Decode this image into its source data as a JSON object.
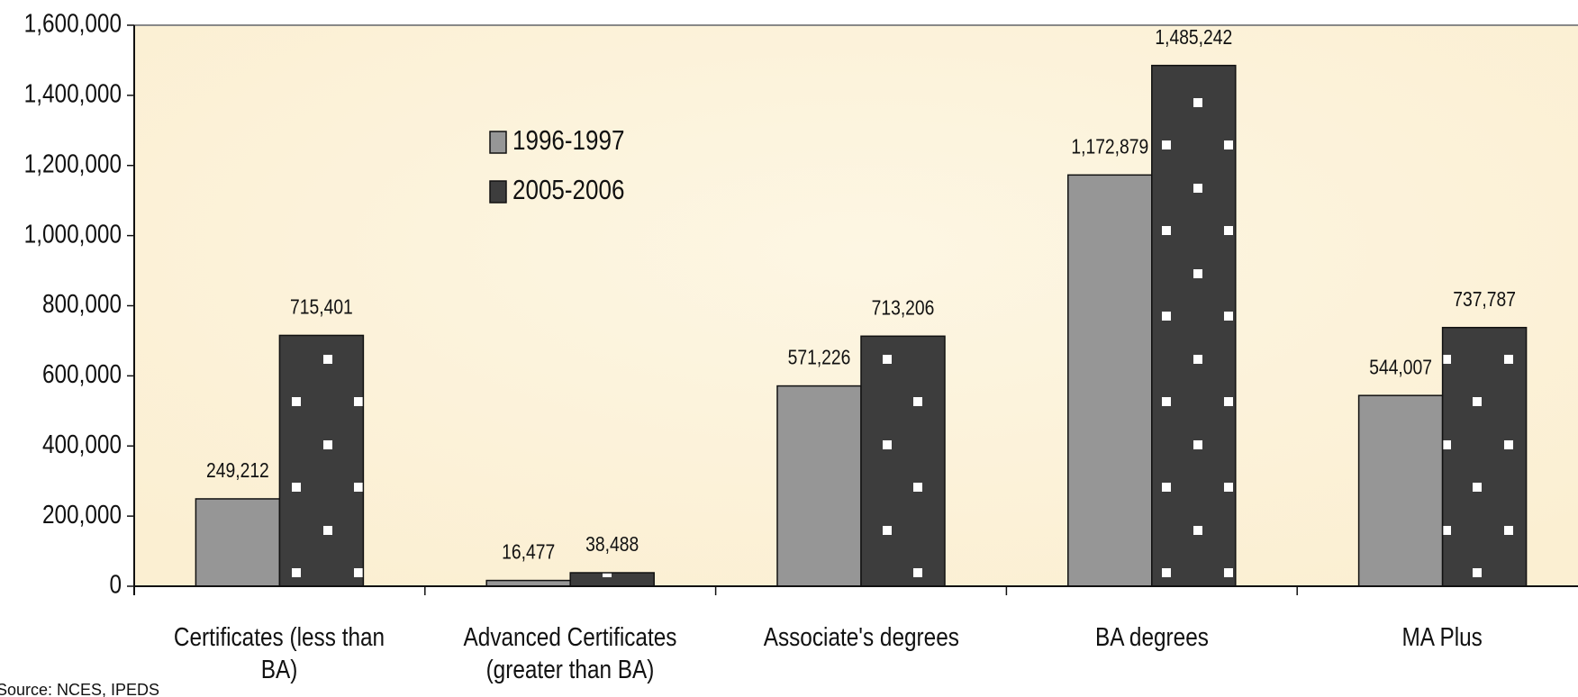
{
  "chart_data": {
    "type": "bar",
    "categories": [
      "Certificates (less than BA)",
      "Advanced Certificates (greater than BA)",
      "Associate's degrees",
      "BA degrees",
      "MA Plus"
    ],
    "series": [
      {
        "name": "1996-1997",
        "color": "#969696",
        "values": [
          249212,
          16477,
          571226,
          1172879,
          544007
        ],
        "value_labels": [
          "249,212",
          "16,477",
          "571,226",
          "1,172,879",
          "544,007"
        ]
      },
      {
        "name": "2005-2006",
        "color": "#3d3d3d",
        "values": [
          715401,
          38488,
          713206,
          1485242,
          737787
        ],
        "value_labels": [
          "715,401",
          "38,488",
          "713,206",
          "1,485,242",
          "737,787"
        ]
      }
    ],
    "ylim": [
      0,
      1600000
    ],
    "yticks": [
      0,
      {
        "value": 200000,
        "label": "200,000"
      },
      {
        "value": 400000,
        "label": "400,000"
      },
      {
        "value": 600000,
        "label": "600,000"
      },
      {
        "value": 800000,
        "label": "800,000"
      },
      {
        "value": 1000000,
        "label": "1,000,000"
      },
      {
        "value": 1200000,
        "label": "1,200,000"
      },
      {
        "value": 1400000,
        "label": "1,400,000"
      },
      {
        "value": 1600000,
        "label": "1,600,000"
      }
    ],
    "legend": "upper left",
    "source": "Source: NCES, IPEDS"
  }
}
